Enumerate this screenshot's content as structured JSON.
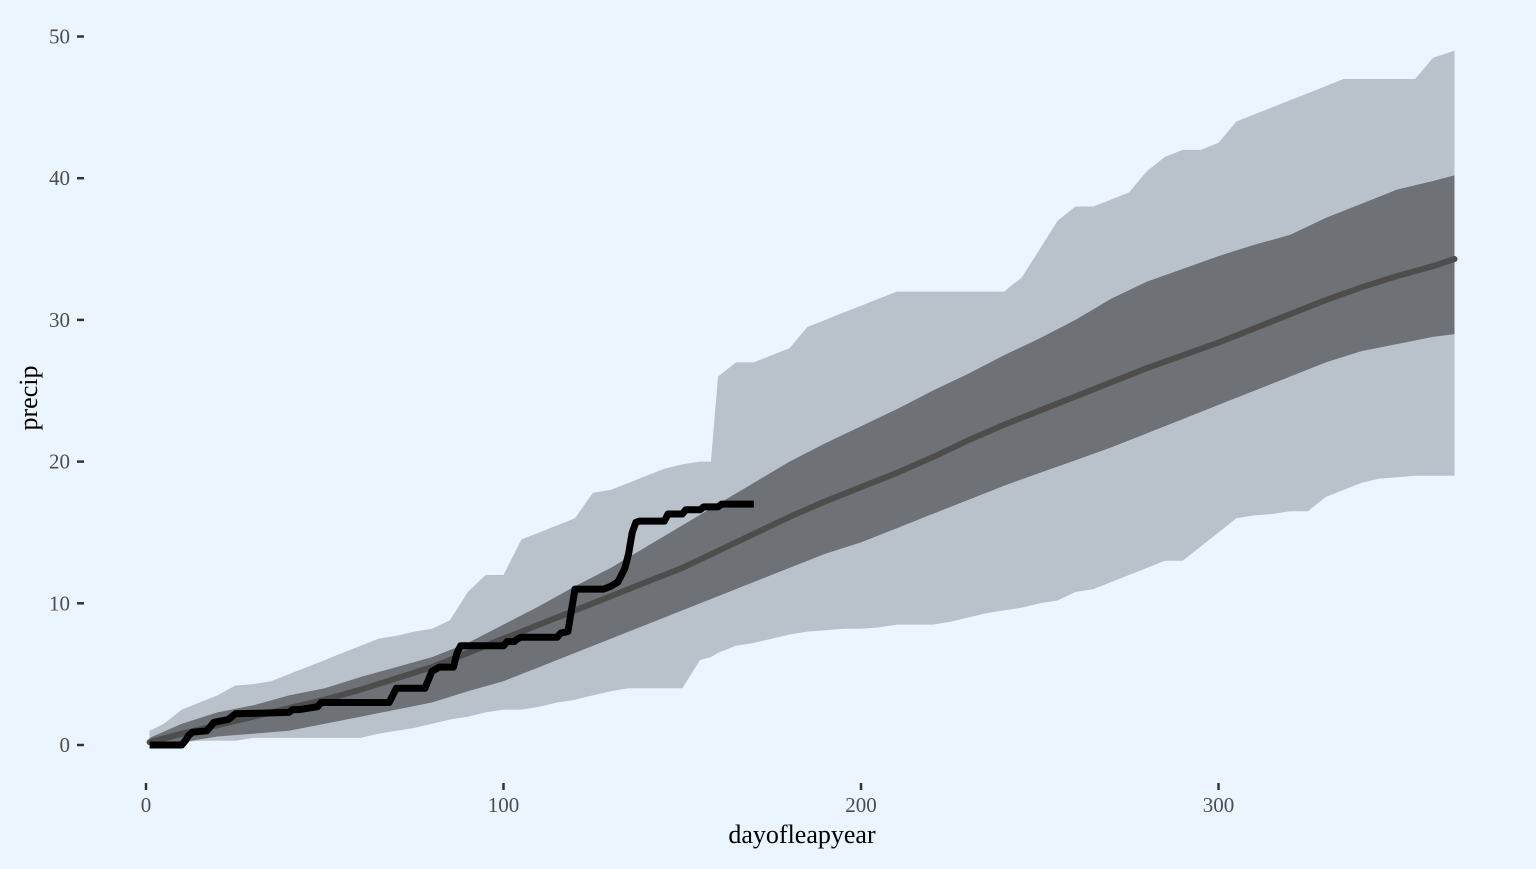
{
  "chart_data": {
    "type": "area",
    "title": "",
    "xlabel": "dayofleapyear",
    "ylabel": "precip",
    "xlim": [
      0,
      366
    ],
    "ylim": [
      0,
      50
    ],
    "x_ticks": [
      0,
      100,
      200,
      300
    ],
    "y_ticks": [
      0,
      10,
      20,
      30,
      40,
      50
    ],
    "x_tick_labels": [
      "0",
      "100",
      "200",
      "300"
    ],
    "y_tick_labels": [
      "0",
      "10",
      "20",
      "30",
      "40",
      "50"
    ],
    "grid": false,
    "legend": "none",
    "colors": {
      "background": "#ebf5ff",
      "outer_band": "#b9c2cb",
      "inner_band": "#6e7277",
      "median_line": "#4d4d4d",
      "observed_line": "#000000"
    },
    "series": [
      {
        "role": "outer-band",
        "x": [
          1,
          5,
          10,
          15,
          20,
          25,
          30,
          35,
          40,
          45,
          50,
          55,
          60,
          65,
          70,
          75,
          80,
          85,
          90,
          95,
          100,
          105,
          110,
          115,
          120,
          125,
          130,
          135,
          140,
          145,
          150,
          155,
          158,
          160,
          165,
          170,
          175,
          180,
          185,
          190,
          195,
          200,
          205,
          210,
          215,
          220,
          225,
          230,
          235,
          240,
          245,
          250,
          255,
          260,
          265,
          270,
          275,
          280,
          285,
          290,
          295,
          300,
          305,
          310,
          315,
          320,
          325,
          330,
          335,
          340,
          345,
          350,
          355,
          360,
          366
        ],
        "upper": [
          1.0,
          1.5,
          2.5,
          3.0,
          3.5,
          4.2,
          4.3,
          4.5,
          5.0,
          5.5,
          6.0,
          6.5,
          7.0,
          7.5,
          7.7,
          8.0,
          8.2,
          8.8,
          10.8,
          12.0,
          12.0,
          14.5,
          15.0,
          15.5,
          16.0,
          17.8,
          18.0,
          18.5,
          19.0,
          19.5,
          19.8,
          20.0,
          20.0,
          26.0,
          27.0,
          27.0,
          27.5,
          28.0,
          29.5,
          30.0,
          30.5,
          31.0,
          31.5,
          32.0,
          32.0,
          32.0,
          32.0,
          32.0,
          32.0,
          32.0,
          33.0,
          35.0,
          37.0,
          38.0,
          38.0,
          38.5,
          39.0,
          40.5,
          41.5,
          42.0,
          42.0,
          42.5,
          44.0,
          44.5,
          45.0,
          45.5,
          46.0,
          46.5,
          47.0,
          47.0,
          47.0,
          47.0,
          47.0,
          48.5,
          49.0
        ],
        "lower": [
          0.0,
          0.0,
          0.2,
          0.3,
          0.3,
          0.3,
          0.5,
          0.5,
          0.5,
          0.5,
          0.5,
          0.5,
          0.5,
          0.8,
          1.0,
          1.2,
          1.5,
          1.8,
          2.0,
          2.3,
          2.5,
          2.5,
          2.7,
          3.0,
          3.2,
          3.5,
          3.8,
          4.0,
          4.0,
          4.0,
          4.0,
          6.0,
          6.2,
          6.5,
          7.0,
          7.2,
          7.5,
          7.8,
          8.0,
          8.1,
          8.2,
          8.2,
          8.3,
          8.5,
          8.5,
          8.5,
          8.7,
          9.0,
          9.3,
          9.5,
          9.7,
          10.0,
          10.2,
          10.8,
          11.0,
          11.5,
          12.0,
          12.5,
          13.0,
          13.0,
          14.0,
          15.0,
          16.0,
          16.2,
          16.3,
          16.5,
          16.5,
          17.5,
          18.0,
          18.5,
          18.8,
          18.9,
          19.0,
          19.0,
          19.0
        ]
      },
      {
        "role": "inner-band",
        "x": [
          1,
          10,
          20,
          30,
          40,
          50,
          60,
          70,
          80,
          90,
          100,
          110,
          120,
          130,
          140,
          150,
          160,
          170,
          180,
          190,
          200,
          210,
          220,
          230,
          240,
          250,
          260,
          270,
          280,
          290,
          300,
          310,
          320,
          330,
          340,
          350,
          360,
          366
        ],
        "upper": [
          0.5,
          1.5,
          2.3,
          2.8,
          3.5,
          4.0,
          4.8,
          5.5,
          6.2,
          7.2,
          8.5,
          9.8,
          11.2,
          12.5,
          14.0,
          15.5,
          17.0,
          18.5,
          20.0,
          21.3,
          22.5,
          23.7,
          25.0,
          26.2,
          27.5,
          28.7,
          30.0,
          31.5,
          32.7,
          33.6,
          34.5,
          35.3,
          36.0,
          37.2,
          38.2,
          39.2,
          39.8,
          40.2
        ],
        "lower": [
          0.0,
          0.2,
          0.6,
          0.8,
          1.0,
          1.5,
          2.0,
          2.5,
          3.0,
          3.8,
          4.5,
          5.5,
          6.5,
          7.5,
          8.5,
          9.5,
          10.5,
          11.5,
          12.5,
          13.5,
          14.3,
          15.3,
          16.3,
          17.3,
          18.3,
          19.2,
          20.1,
          21.0,
          22.0,
          23.0,
          24.0,
          25.0,
          26.0,
          27.0,
          27.8,
          28.3,
          28.8,
          29.0
        ]
      },
      {
        "role": "median",
        "x": [
          1,
          10,
          20,
          30,
          40,
          50,
          60,
          70,
          80,
          90,
          100,
          110,
          120,
          130,
          140,
          150,
          160,
          170,
          180,
          190,
          200,
          210,
          220,
          230,
          240,
          250,
          260,
          270,
          280,
          290,
          300,
          310,
          320,
          330,
          340,
          350,
          360,
          366
        ],
        "values": [
          0.2,
          0.8,
          1.4,
          2.0,
          2.6,
          3.2,
          3.9,
          4.7,
          5.5,
          6.5,
          7.5,
          8.5,
          9.5,
          10.5,
          11.5,
          12.5,
          13.7,
          14.9,
          16.1,
          17.2,
          18.2,
          19.2,
          20.3,
          21.5,
          22.6,
          23.6,
          24.6,
          25.6,
          26.6,
          27.5,
          28.4,
          29.4,
          30.4,
          31.4,
          32.3,
          33.1,
          33.8,
          34.3
        ]
      },
      {
        "role": "observed",
        "x": [
          1,
          10,
          11,
          12,
          13,
          17,
          18,
          19,
          23,
          24,
          25,
          40,
          41,
          43,
          48,
          49,
          68,
          69,
          70,
          78,
          79,
          80,
          82,
          86,
          87,
          88,
          100,
          101,
          103,
          104,
          105,
          115,
          116,
          118,
          119,
          120,
          128,
          130,
          132,
          133,
          134,
          135,
          136,
          137,
          138,
          145,
          146,
          150,
          151,
          155,
          156,
          160,
          161,
          170
        ],
        "values": [
          0,
          0,
          0.3,
          0.7,
          0.9,
          1.0,
          1.3,
          1.6,
          1.8,
          2.0,
          2.2,
          2.3,
          2.5,
          2.5,
          2.7,
          3.0,
          3.0,
          3.5,
          4.0,
          4.0,
          4.6,
          5.2,
          5.5,
          5.5,
          6.5,
          7.0,
          7.0,
          7.3,
          7.3,
          7.5,
          7.6,
          7.6,
          7.9,
          8.0,
          9.5,
          11.0,
          11.0,
          11.2,
          11.5,
          12.0,
          12.5,
          13.5,
          15.0,
          15.7,
          15.8,
          15.8,
          16.3,
          16.3,
          16.6,
          16.6,
          16.8,
          16.8,
          17.0,
          17.0
        ]
      }
    ]
  }
}
